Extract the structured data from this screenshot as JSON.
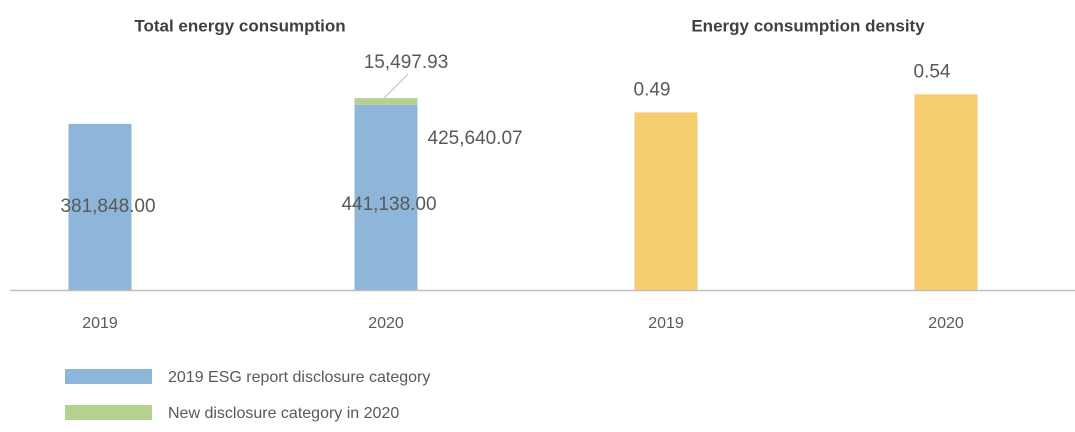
{
  "chart_data": [
    {
      "type": "stacked_bar",
      "title": "Total energy consumption",
      "categories": [
        "2019",
        "2020"
      ],
      "series": [
        {
          "name": "2019 ESG report disclosure category",
          "color": "#8db6da",
          "values": [
            381848.0,
            425640.07
          ],
          "value_labels": [
            "381,848.00",
            "425,640.07"
          ]
        },
        {
          "name": "New disclosure category in 2020",
          "color": "#b5d18f",
          "values": [
            null,
            15497.93
          ],
          "value_labels": [
            null,
            "15,497.93"
          ]
        }
      ],
      "totals": [
        null,
        441138.0
      ],
      "total_labels": [
        null,
        "441,138.00"
      ],
      "ylim": [
        0,
        500000
      ]
    },
    {
      "type": "bar",
      "title": "Energy consumption density",
      "categories": [
        "2019",
        "2020"
      ],
      "values": [
        0.49,
        0.54
      ],
      "color": "#f5cd6e",
      "ylim": [
        0,
        0.6
      ]
    }
  ]
}
